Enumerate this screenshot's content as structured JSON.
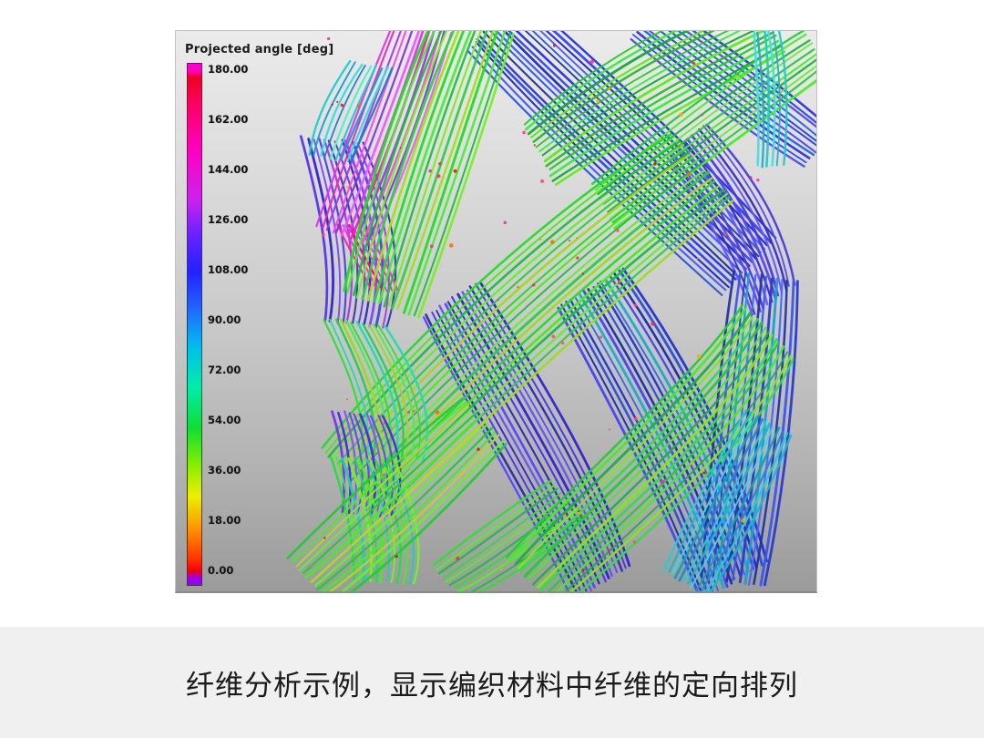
{
  "figure": {
    "legend_title": "Projected angle [deg]",
    "colorbar": {
      "ticks": [
        "180.00",
        "162.00",
        "144.00",
        "126.00",
        "108.00",
        "90.00",
        "72.00",
        "54.00",
        "36.00",
        "18.00",
        "0.00"
      ],
      "border_color": "#3a3a3a",
      "gradient_stops": [
        "#ff00cc 0%",
        "#ff00cc 1.3%",
        "#ee0022 2.6%",
        "#ff0066 8%",
        "#ff00bb 16%",
        "#cc22ee 26%",
        "#6622ff 33%",
        "#2222ff 40%",
        "#2266ff 47%",
        "#00bbee 54%",
        "#00eeaa 62%",
        "#11dd33 70%",
        "#88ee00 77%",
        "#eeee00 83%",
        "#ff8800 90%",
        "#ff3300 95%",
        "#ee0011 97.4%",
        "#9900ee 98.7%",
        "#9900ee 100%"
      ]
    }
  },
  "caption": {
    "text": "纤维分析示例，显示编织材料中纤维的定向排列",
    "background": "#f0f0f1",
    "color": "#1a1a1a"
  },
  "chart_data": {
    "type": "heatmap",
    "title": "Projected angle [deg]",
    "legend_title": "Projected angle [deg]",
    "units": "deg",
    "colorbar_ticks": [
      180.0,
      162.0,
      144.0,
      126.0,
      108.0,
      90.0,
      72.0,
      54.0,
      36.0,
      18.0,
      0.0
    ],
    "colorbar_range": [
      0,
      180
    ],
    "colorbar_orientation": "vertical-left",
    "description": "3D fiber-tracing visualization of a braided/woven composite material; individual fiber tracts are colored by their projected angle (0-180 deg): green tows run lower-left to upper-right, blue/indigo tows run upper-left to lower-right, magenta/purple and cyan strands at the left edge, with scattered red/orange speckles.",
    "background_gradient": [
      "#ebebeb",
      "#9b9b9b"
    ],
    "tows": [
      {
        "name": "left-purple-upper",
        "p": [
          172,
          120,
          196,
          190,
          212,
          255,
          198,
          322
        ],
        "off": [
          6.5,
          0.6
        ],
        "n": 12,
        "sw": 2.2,
        "colors": [
          "#5533ee",
          "#3322cc",
          "#7744ff",
          "#4444dd",
          "#aa33ee",
          "#3333bb"
        ]
      },
      {
        "name": "left-magenta-patch",
        "p": [
          192,
          215,
          205,
          240,
          218,
          258,
          228,
          284
        ],
        "off": [
          6,
          0.5
        ],
        "n": 6,
        "sw": 2,
        "colors": [
          "#ff2299",
          "#ee33cc",
          "#ff0077",
          "#cc33ee"
        ]
      },
      {
        "name": "magenta-top",
        "p": [
          185,
          225,
          215,
          150,
          245,
          70,
          272,
          -10
        ],
        "off": [
          5.6,
          2.1
        ],
        "n": 12,
        "sw": 2.2,
        "colors": [
          "#dd33ee",
          "#ee22bb",
          "#aa33ee",
          "#ff44dd",
          "#8833dd",
          "#ee55ff"
        ]
      },
      {
        "name": "left-cyan-top",
        "p": [
          215,
          38,
          196,
          72,
          180,
          105,
          170,
          140
        ],
        "off": [
          6.2,
          1
        ],
        "n": 9,
        "sw": 2,
        "colors": [
          "#22ccc8",
          "#1899d8",
          "#30dde0",
          "#2277cc",
          "#55eecc"
        ]
      },
      {
        "name": "blue-top-center",
        "p": [
          350,
          -10,
          430,
          70,
          540,
          170,
          628,
          258
        ],
        "off": [
          -3.8,
          4
        ],
        "n": 17,
        "sw": 2.2,
        "colors": [
          "#2233dd",
          "#3344ee",
          "#1b2bb8",
          "#4455ff",
          "#2a55dd",
          "#223399"
        ]
      },
      {
        "name": "blue-top-right",
        "p": [
          515,
          -12,
          585,
          40,
          650,
          88,
          705,
          128
        ],
        "off": [
          -3.2,
          4.4
        ],
        "n": 11,
        "sw": 2,
        "colors": [
          "#3333dd",
          "#2244ee",
          "#5544ee",
          "#2266dd"
        ]
      },
      {
        "name": "violet-right",
        "p": [
          560,
          120,
          608,
          180,
          640,
          235,
          655,
          295
        ],
        "off": [
          -4.4,
          3.4
        ],
        "n": 12,
        "sw": 2.2,
        "colors": [
          "#4a3ae0",
          "#5544ee",
          "#3a2ac0",
          "#6655ff"
        ]
      },
      {
        "name": "green-top-right-band",
        "p": [
          400,
          135,
          480,
          75,
          565,
          28,
          650,
          -12
        ],
        "off": [
          2.8,
          5.4
        ],
        "n": 14,
        "sw": 2.2,
        "colors": [
          "#22cc22",
          "#33ee33",
          "#11aa33",
          "#55ee11",
          "#28b828"
        ]
      },
      {
        "name": "green-right-mid-band",
        "p": [
          470,
          192,
          560,
          122,
          640,
          65,
          702,
          22
        ],
        "off": [
          2.8,
          5.4
        ],
        "n": 10,
        "sw": 2.2,
        "colors": [
          "#22cc33",
          "#44ee22",
          "#18b830",
          "#66ee33"
        ]
      },
      {
        "name": "green-top-center",
        "p": [
          225,
          300,
          255,
          200,
          290,
          90,
          330,
          -10
        ],
        "off": [
          5.8,
          1.9
        ],
        "n": 16,
        "sw": 2.4,
        "colors": [
          "#22dd22",
          "#44ee33",
          "#16c03a",
          "#77ee22",
          "#33cc44",
          "#a0e020"
        ]
      },
      {
        "name": "cyan-right-edge-top",
        "p": [
          648,
          0,
          654,
          45,
          656,
          90,
          652,
          148
        ],
        "off": [
          -5.8,
          0.3
        ],
        "n": 6,
        "sw": 2,
        "colors": [
          "#22c8c8",
          "#2aa8d0",
          "#44dddd"
        ]
      },
      {
        "name": "indigo-center-bottom",
        "p": [
          302,
          295,
          360,
          400,
          428,
          508,
          468,
          606
        ],
        "off": [
          -5,
          3.2
        ],
        "n": 14,
        "sw": 2.3,
        "colors": [
          "#3322cc",
          "#4433ee",
          "#2a2ab0",
          "#5544ff",
          "#6655ee"
        ]
      },
      {
        "name": "blue-mid-right",
        "p": [
          455,
          282,
          512,
          375,
          572,
          480,
          612,
          604
        ],
        "off": [
          -5,
          3
        ],
        "n": 16,
        "sw": 2.3,
        "colors": [
          "#2233cc",
          "#2b4fd4",
          "#1a2aaa",
          "#4444ee",
          "#18aacc",
          "#3366dd"
        ]
      },
      {
        "name": "blue-right-column",
        "p": [
          648,
          270,
          640,
          368,
          628,
          490,
          612,
          604
        ],
        "off": [
          -6.2,
          -0.9
        ],
        "n": 13,
        "sw": 2.3,
        "colors": [
          "#2a3acc",
          "#3a55ee",
          "#2233aa",
          "#4466ff",
          "#1b9fd0"
        ]
      },
      {
        "name": "green-central",
        "p": [
          195,
          495,
          300,
          380,
          440,
          250,
          578,
          150
        ],
        "off": [
          4.2,
          4.6
        ],
        "n": 18,
        "sw": 2.4,
        "colors": [
          "#22dd22",
          "#44ee11",
          "#18c038",
          "#66ee33",
          "#2ecc40",
          "#99dd22"
        ]
      },
      {
        "name": "left-teal-green-mid",
        "p": [
          196,
          320,
          228,
          378,
          246,
          420,
          238,
          468
        ],
        "off": [
          6.3,
          0.8
        ],
        "n": 12,
        "sw": 2.2,
        "colors": [
          "#33dd33",
          "#22ddaa",
          "#22cc55",
          "#99dd11",
          "#44ee44"
        ]
      },
      {
        "name": "left-purple-low",
        "p": [
          200,
          420,
          215,
          460,
          220,
          495,
          210,
          530
        ],
        "off": [
          6.4,
          0.6
        ],
        "n": 10,
        "sw": 2.2,
        "colors": [
          "#7733ee",
          "#5522dd",
          "#9944ff",
          "#6644ee"
        ]
      },
      {
        "name": "left-green-bottom",
        "p": [
          205,
          470,
          225,
          520,
          235,
          565,
          228,
          604
        ],
        "off": [
          6.4,
          0.5
        ],
        "n": 12,
        "sw": 2.2,
        "colors": [
          "#22dd44",
          "#44ee22",
          "#22ccaa",
          "#77ee33"
        ]
      },
      {
        "name": "green-bottom-left",
        "p": [
          148,
          604,
          205,
          556,
          275,
          488,
          338,
          428
        ],
        "off": [
          4.3,
          4.5
        ],
        "n": 13,
        "sw": 2.3,
        "colors": [
          "#22cc33",
          "#44ee22",
          "#aadd22",
          "#66ee33"
        ]
      },
      {
        "name": "green-bottom-center-small",
        "p": [
          300,
          606,
          345,
          578,
          390,
          545,
          430,
          515
        ],
        "off": [
          4.3,
          4.6
        ],
        "n": 10,
        "sw": 2.2,
        "colors": [
          "#33dd33",
          "#55ee22",
          "#22bb44"
        ]
      },
      {
        "name": "green-bottom-right",
        "p": [
          392,
          606,
          478,
          520,
          600,
          418,
          650,
          330
        ],
        "off": [
          4.3,
          4.5
        ],
        "n": 15,
        "sw": 2.4,
        "colors": [
          "#22cc33",
          "#44ee22",
          "#1bb040",
          "#77ee11",
          "#33dd44"
        ]
      },
      {
        "name": "cyan-bottom-right",
        "p": [
          650,
          430,
          622,
          490,
          592,
          548,
          560,
          606
        ],
        "off": [
          -4.6,
          -2.9
        ],
        "n": 12,
        "sw": 2.2,
        "colors": [
          "#18b8cc",
          "#22ccd8",
          "#2288cc",
          "#11a0b8",
          "#33ddee"
        ]
      }
    ],
    "speckle_colors": [
      "#ff2244",
      "#ff6600",
      "#dd1100",
      "#ff22aa",
      "#ffaa00",
      "#ff4477"
    ]
  }
}
